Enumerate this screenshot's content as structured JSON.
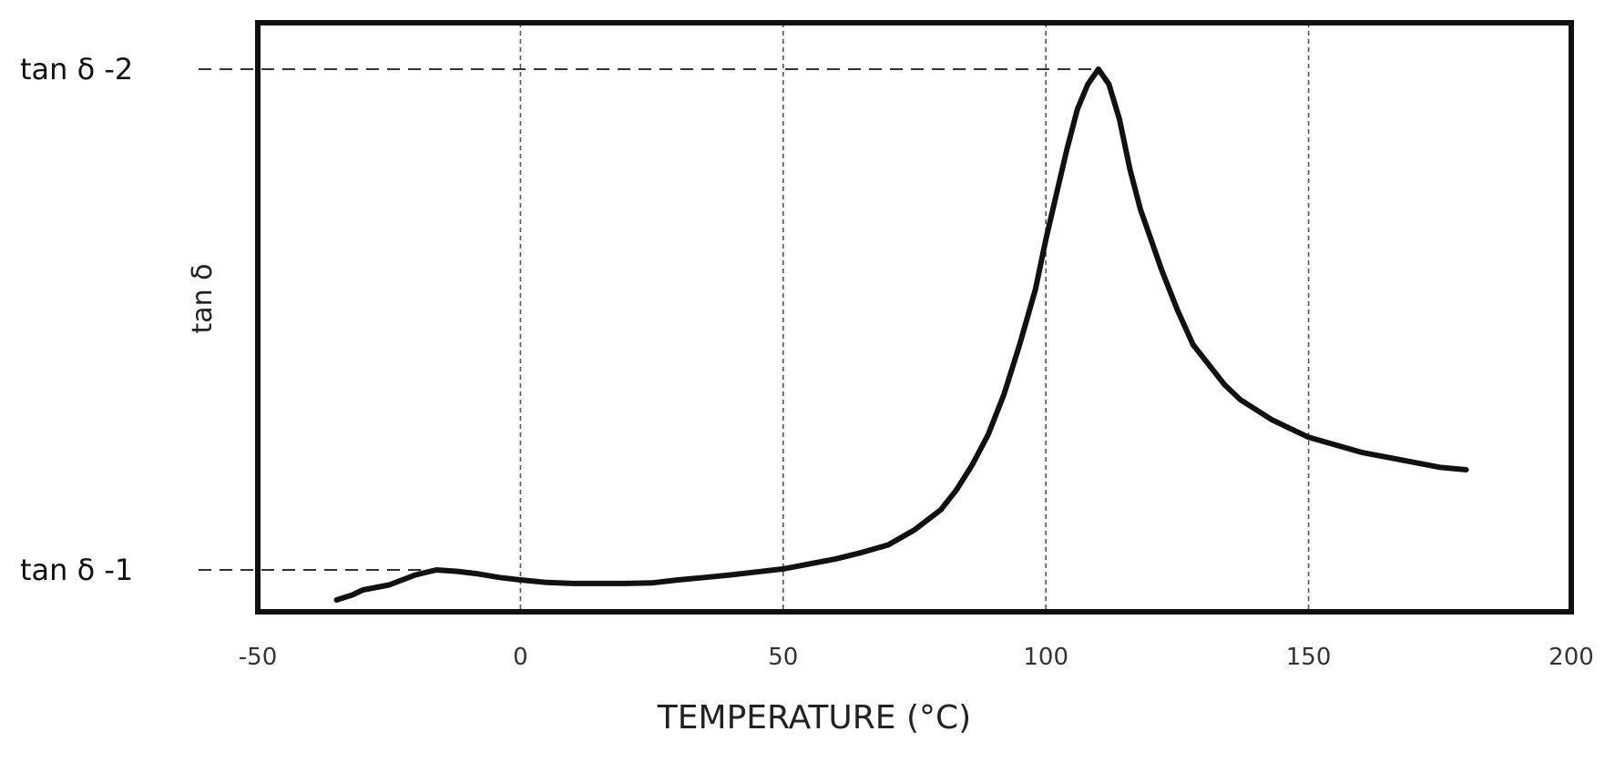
{
  "chart_data": {
    "type": "line",
    "xlabel": "TEMPERATURE (°C)",
    "ylabel": "tan δ",
    "xlim": [
      -50,
      200
    ],
    "x_ticks": [
      {
        "value": -50,
        "label": "-50"
      },
      {
        "value": 0,
        "label": "0"
      },
      {
        "value": 50,
        "label": "50"
      },
      {
        "value": 100,
        "label": "100"
      },
      {
        "value": 150,
        "label": "150"
      },
      {
        "value": 200,
        "label": "200"
      }
    ],
    "grid": "vertical dashed at 0, 50, 100, 150",
    "reference_lines": [
      {
        "label": "tan δ -2",
        "value": 1.0,
        "x_end": 110
      },
      {
        "label": "tan δ -1",
        "value": 0.0,
        "x_end": -18
      }
    ],
    "ylim_normalized": [
      -0.08,
      1.1
    ],
    "series": [
      {
        "x": [
          -35,
          -32,
          -30,
          -25,
          -20,
          -16,
          -12,
          -8,
          -4,
          0,
          5,
          10,
          15,
          20,
          25,
          30,
          35,
          40,
          45,
          50,
          55,
          60,
          65,
          70,
          75,
          80,
          83,
          86,
          89,
          92,
          95,
          98,
          100,
          102,
          104,
          106,
          108,
          110,
          112,
          114,
          116,
          118,
          120,
          122,
          125,
          128,
          131,
          134,
          137,
          140,
          143,
          146,
          150,
          155,
          160,
          165,
          170,
          175,
          180
        ],
        "y": [
          -0.06,
          -0.05,
          -0.04,
          -0.03,
          -0.01,
          0.0,
          -0.003,
          -0.008,
          -0.015,
          -0.02,
          -0.025,
          -0.027,
          -0.027,
          -0.027,
          -0.026,
          -0.02,
          -0.015,
          -0.01,
          -0.004,
          0.002,
          0.012,
          0.022,
          0.035,
          0.05,
          0.08,
          0.12,
          0.16,
          0.21,
          0.27,
          0.35,
          0.45,
          0.56,
          0.66,
          0.75,
          0.84,
          0.92,
          0.97,
          1.0,
          0.97,
          0.9,
          0.8,
          0.72,
          0.66,
          0.6,
          0.52,
          0.45,
          0.41,
          0.37,
          0.34,
          0.32,
          0.3,
          0.285,
          0.265,
          0.25,
          0.235,
          0.225,
          0.215,
          0.205,
          0.2
        ]
      }
    ],
    "colors": {
      "line": "#111111",
      "frame": "#111111",
      "grid": "#555555",
      "reference": "#333333"
    }
  }
}
